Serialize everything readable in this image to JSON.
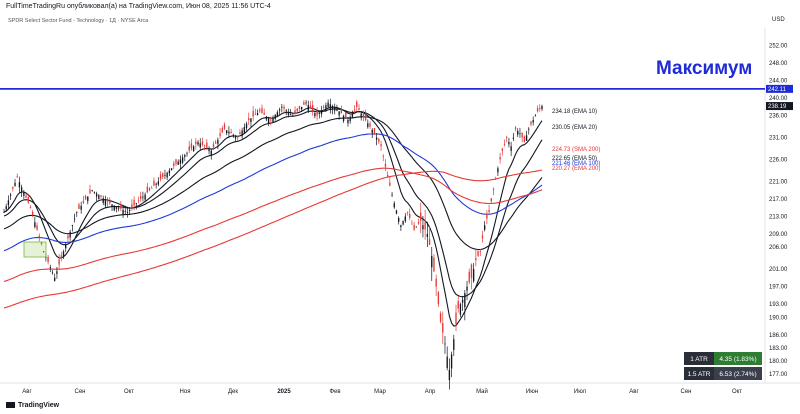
{
  "header": {
    "published": "FullTimeTradingRu опубликовал(а) на TradingView.com, Июн 08, 2025 11:56 UTC-4",
    "instrument": "SPDR Select Sector Fund - Technology · 1Д · NYSE Arca",
    "currency": "USD"
  },
  "brand": "TradingView",
  "annotation": "Максимум",
  "atr_box": [
    {
      "label": "1 ATR",
      "value": "4.35 (1.83%)"
    },
    {
      "label": "1.5 ATR",
      "value": "6.53 (2.74%)"
    }
  ],
  "chart_data": {
    "type": "candlestick",
    "title": "SPDR Select Sector Fund - Technology · 1Д · NYSE Arca",
    "x_ticks": [
      "Авг",
      "Сен",
      "Окт",
      "Ноя",
      "Дек",
      "2025",
      "Фев",
      "Мар",
      "Апр",
      "Май",
      "Июн",
      "Июл",
      "Авг",
      "Сен",
      "Окт"
    ],
    "y_ticks": [
      177.0,
      180.0,
      183.0,
      186.0,
      190.0,
      193.0,
      197.0,
      201.0,
      206.0,
      209.0,
      213.0,
      217.0,
      221.0,
      226.0,
      231.0,
      236.0,
      240.0,
      244.0,
      248.0,
      252.0
    ],
    "ylim": [
      175,
      256
    ],
    "resistance_level": 242.11,
    "last_price": 238.19,
    "series_labels": [
      {
        "name": "EMA 10",
        "text": "234.18 (EMA 10)",
        "value": 234.18,
        "color": "#131722"
      },
      {
        "name": "EMA 20",
        "text": "230.05 (EMA 20)",
        "value": 230.05,
        "color": "#131722"
      },
      {
        "name": "SMA 200",
        "text": "224.73 (SMA 200)",
        "value": 224.73,
        "color": "#e53935"
      },
      {
        "name": "EMA 50",
        "text": "222.65 (EMA 50)",
        "value": 222.65,
        "color": "#131722"
      },
      {
        "name": "EMA 100",
        "text": "221.46 (EMA 100)",
        "value": 221.46,
        "color": "#1e3bd6"
      },
      {
        "name": "EMA 200",
        "text": "220.27 (EMA 200)",
        "value": 220.27,
        "color": "#e53935"
      }
    ],
    "price_path": [
      [
        0,
        214
      ],
      [
        6,
        222
      ],
      [
        12,
        215
      ],
      [
        18,
        205
      ],
      [
        23,
        199
      ],
      [
        27,
        205
      ],
      [
        33,
        214
      ],
      [
        40,
        219
      ],
      [
        48,
        216
      ],
      [
        56,
        214
      ],
      [
        64,
        218
      ],
      [
        72,
        222
      ],
      [
        80,
        226
      ],
      [
        88,
        230
      ],
      [
        94,
        228
      ],
      [
        100,
        233
      ],
      [
        106,
        231
      ],
      [
        111,
        235
      ],
      [
        116,
        237
      ],
      [
        121,
        235
      ],
      [
        126,
        238
      ],
      [
        131,
        236
      ],
      [
        137,
        239
      ],
      [
        142,
        236
      ],
      [
        147,
        239
      ],
      [
        152,
        237
      ],
      [
        156,
        235
      ],
      [
        160,
        238
      ],
      [
        164,
        235
      ],
      [
        168,
        232
      ],
      [
        171,
        229
      ],
      [
        174,
        222
      ],
      [
        177,
        216
      ],
      [
        180,
        211
      ],
      [
        183,
        214
      ],
      [
        186,
        210
      ],
      [
        189,
        212
      ],
      [
        192,
        209
      ],
      [
        194,
        204
      ],
      [
        196,
        197
      ],
      [
        198,
        189
      ],
      [
        200,
        184
      ],
      [
        202,
        178
      ],
      [
        204,
        185
      ],
      [
        206,
        192
      ],
      [
        208,
        194
      ],
      [
        210,
        197
      ],
      [
        212,
        199
      ],
      [
        214,
        203
      ],
      [
        216,
        205
      ],
      [
        218,
        211
      ],
      [
        220,
        214
      ],
      [
        222,
        219
      ],
      [
        224,
        224
      ],
      [
        226,
        228
      ],
      [
        228,
        231
      ],
      [
        230,
        229
      ],
      [
        232,
        233
      ],
      [
        234,
        232
      ],
      [
        236,
        230
      ],
      [
        238,
        233
      ],
      [
        240,
        235
      ],
      [
        242,
        237
      ],
      [
        244,
        238.2
      ]
    ]
  }
}
